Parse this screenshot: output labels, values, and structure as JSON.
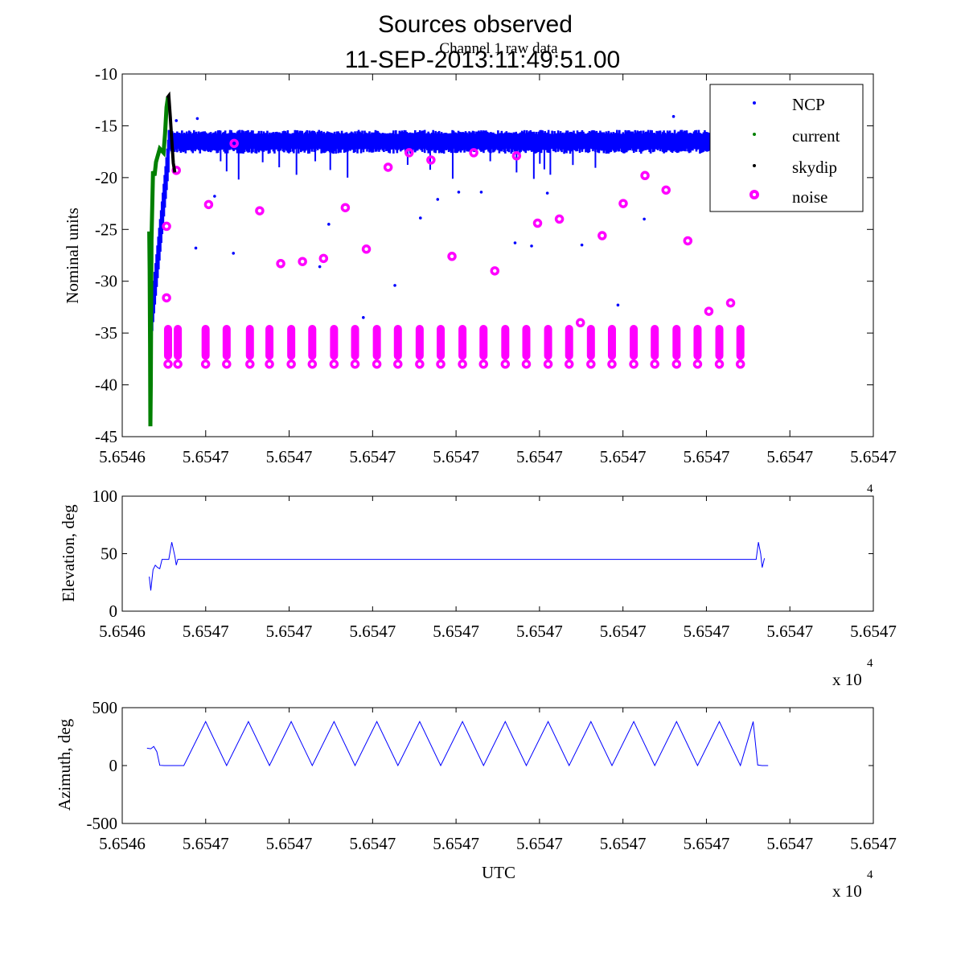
{
  "figure": {
    "title": "Sources observed",
    "subtitle": "11-SEP-2013:11:49:51.00"
  },
  "chart_data": [
    {
      "type": "scatter",
      "title": "Channel 1 raw data",
      "xlabel": "",
      "ylabel": "Nominal units",
      "ylim": [
        -45,
        -10
      ],
      "yticks": [
        "-10",
        "-15",
        "-20",
        "-25",
        "-30",
        "-35",
        "-40",
        "-45"
      ],
      "xticks": [
        "5.6546",
        "5.6547",
        "5.6547",
        "5.6547",
        "5.6547",
        "5.6547",
        "5.6547",
        "5.6547",
        "5.6547",
        "5.6547"
      ],
      "x_exponent": "4",
      "legend_position": "top-right",
      "series": [
        {
          "name": "NCP",
          "color": "#0000ff",
          "marker": "dot"
        },
        {
          "name": "current",
          "color": "#008000",
          "marker": "dot"
        },
        {
          "name": "skydip",
          "color": "#000000",
          "marker": "dot"
        },
        {
          "name": "noise",
          "color": "#ff00ff",
          "marker": "circle"
        }
      ],
      "noise_scattered": [
        [
          0.059,
          -24.7
        ],
        [
          0.059,
          -31.6
        ],
        [
          0.072,
          -19.3
        ],
        [
          0.115,
          -22.6
        ],
        [
          0.149,
          -16.7
        ],
        [
          0.183,
          -23.2
        ],
        [
          0.211,
          -28.3
        ],
        [
          0.24,
          -28.1
        ],
        [
          0.268,
          -27.8
        ],
        [
          0.297,
          -22.9
        ],
        [
          0.325,
          -26.9
        ],
        [
          0.354,
          -19.0
        ],
        [
          0.382,
          -17.6
        ],
        [
          0.411,
          -18.3
        ],
        [
          0.439,
          -27.6
        ],
        [
          0.468,
          -17.6
        ],
        [
          0.496,
          -29.0
        ],
        [
          0.525,
          -17.9
        ],
        [
          0.553,
          -24.4
        ],
        [
          0.582,
          -24.0
        ],
        [
          0.61,
          -34.0
        ],
        [
          0.639,
          -25.6
        ],
        [
          0.667,
          -22.5
        ],
        [
          0.696,
          -19.8
        ],
        [
          0.724,
          -21.2
        ],
        [
          0.753,
          -26.1
        ],
        [
          0.781,
          -32.9
        ],
        [
          0.81,
          -32.1
        ]
      ],
      "noise_clusters_x": [
        0.061,
        0.074,
        0.111,
        0.139,
        0.17,
        0.196,
        0.225,
        0.253,
        0.282,
        0.31,
        0.339,
        0.367,
        0.396,
        0.424,
        0.453,
        0.481,
        0.51,
        0.538,
        0.567,
        0.595,
        0.624,
        0.652,
        0.681,
        0.709,
        0.738,
        0.766,
        0.795,
        0.823
      ],
      "noise_cluster_range": [
        -37.8,
        -34.6
      ]
    },
    {
      "type": "line",
      "title": "",
      "xlabel": "",
      "ylabel": "Elevation, deg",
      "ylim": [
        0,
        100
      ],
      "yticks": [
        "100",
        "50",
        "0"
      ],
      "xticks": [
        "5.6546",
        "5.6547",
        "5.6547",
        "5.6547",
        "5.6547",
        "5.6547",
        "5.6547",
        "5.6547",
        "5.6547",
        "5.6547"
      ],
      "x_exponent": "4",
      "multiplier_label": "x 10",
      "series": [
        {
          "name": "Elevation",
          "color": "#0000ff",
          "points": [
            [
              0.036,
              30
            ],
            [
              0.038,
              18
            ],
            [
              0.041,
              36
            ],
            [
              0.044,
              40
            ],
            [
              0.047,
              38
            ],
            [
              0.05,
              37
            ],
            [
              0.053,
              45
            ],
            [
              0.058,
              45
            ],
            [
              0.062,
              45
            ],
            [
              0.066,
              60
            ],
            [
              0.07,
              48
            ],
            [
              0.072,
              40
            ],
            [
              0.074,
              45
            ],
            [
              0.08,
              45
            ],
            [
              0.84,
              45
            ],
            [
              0.844,
              45
            ],
            [
              0.847,
              60
            ],
            [
              0.85,
              50
            ],
            [
              0.852,
              38
            ],
            [
              0.855,
              46
            ]
          ]
        }
      ]
    },
    {
      "type": "line",
      "title": "",
      "xlabel": "UTC",
      "ylabel": "Azimuth, deg",
      "ylim": [
        -500,
        500
      ],
      "yticks": [
        "500",
        "0",
        "-500"
      ],
      "xticks": [
        "5.6546",
        "5.6547",
        "5.6547",
        "5.6547",
        "5.6547",
        "5.6547",
        "5.6547",
        "5.6547",
        "5.6547",
        "5.6547"
      ],
      "x_exponent": "4",
      "multiplier_label": "x 10",
      "series": [
        {
          "name": "Azimuth",
          "color": "#0000ff",
          "points": [
            [
              0.033,
              150
            ],
            [
              0.038,
              145
            ],
            [
              0.042,
              165
            ],
            [
              0.046,
              120
            ],
            [
              0.05,
              2
            ],
            [
              0.056,
              0
            ],
            [
              0.07,
              0
            ],
            [
              0.082,
              0
            ],
            [
              0.111,
              380
            ],
            [
              0.139,
              0
            ],
            [
              0.168,
              380
            ],
            [
              0.196,
              0
            ],
            [
              0.225,
              380
            ],
            [
              0.253,
              0
            ],
            [
              0.282,
              380
            ],
            [
              0.31,
              0
            ],
            [
              0.339,
              380
            ],
            [
              0.367,
              0
            ],
            [
              0.396,
              380
            ],
            [
              0.424,
              0
            ],
            [
              0.453,
              380
            ],
            [
              0.481,
              0
            ],
            [
              0.51,
              380
            ],
            [
              0.538,
              0
            ],
            [
              0.567,
              380
            ],
            [
              0.595,
              0
            ],
            [
              0.624,
              380
            ],
            [
              0.652,
              0
            ],
            [
              0.681,
              380
            ],
            [
              0.709,
              0
            ],
            [
              0.738,
              380
            ],
            [
              0.766,
              0
            ],
            [
              0.795,
              380
            ],
            [
              0.823,
              0
            ],
            [
              0.84,
              380
            ],
            [
              0.846,
              5
            ],
            [
              0.852,
              0
            ],
            [
              0.86,
              0
            ]
          ]
        }
      ]
    }
  ]
}
